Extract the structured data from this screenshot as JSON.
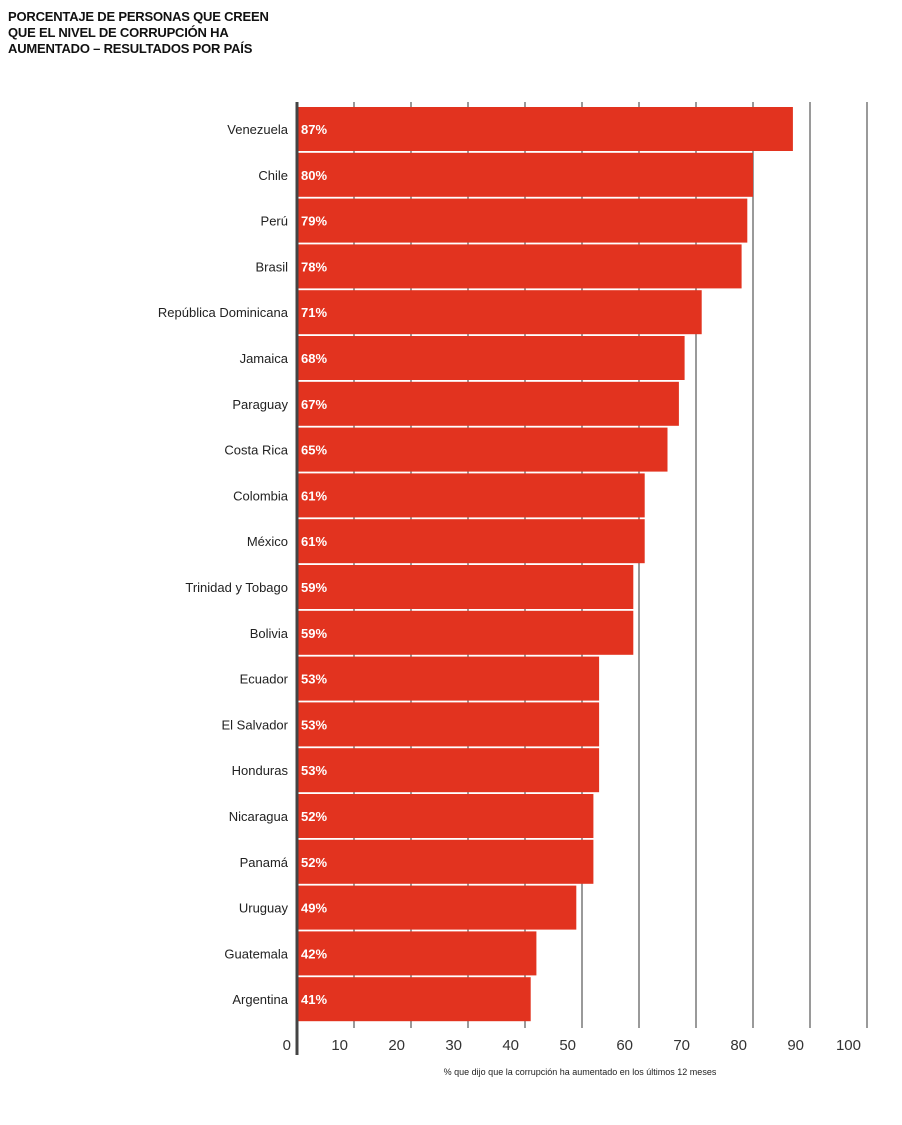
{
  "title_lines": [
    "PORCENTAJE DE PERSONAS QUE CREEN",
    "QUE EL NIVEL DE CORRUPCIÓN HA",
    "AUMENTADO – RESULTADOS POR PAÍS"
  ],
  "colors": {
    "bar": "#e2331f",
    "grid": "#9a9a9a",
    "axis": "#444444"
  },
  "chart_data": {
    "type": "bar",
    "orientation": "horizontal",
    "title": "PORCENTAJE DE PERSONAS QUE CREEN QUE EL NIVEL DE CORRUPCIÓN HA AUMENTADO – RESULTADOS POR PAÍS",
    "xlabel": "% que dijo que la corrupción ha aumentado en los últimos 12 meses",
    "ylabel": "",
    "xlim": [
      0,
      100
    ],
    "ticks": [
      "0",
      "10",
      "20",
      "30",
      "40",
      "50",
      "60",
      "70",
      "80",
      "90",
      "100"
    ],
    "grid": true,
    "categories": [
      "Venezuela",
      "Chile",
      "Perú",
      "Brasil",
      "República Dominicana",
      "Jamaica",
      "Paraguay",
      "Costa Rica",
      "Colombia",
      "México",
      "Trinidad y Tobago",
      "Bolivia",
      "Ecuador",
      "El Salvador",
      "Honduras",
      "Nicaragua",
      "Panamá",
      "Uruguay",
      "Guatemala",
      "Argentina"
    ],
    "values": [
      87,
      80,
      79,
      78,
      71,
      68,
      67,
      65,
      61,
      61,
      59,
      59,
      53,
      53,
      53,
      52,
      52,
      49,
      42,
      41
    ],
    "value_labels": [
      "87%",
      "80%",
      "79%",
      "78%",
      "71%",
      "68%",
      "67%",
      "65%",
      "61%",
      "61%",
      "59%",
      "59%",
      "53%",
      "53%",
      "53%",
      "52%",
      "52%",
      "49%",
      "42%",
      "41%"
    ]
  }
}
